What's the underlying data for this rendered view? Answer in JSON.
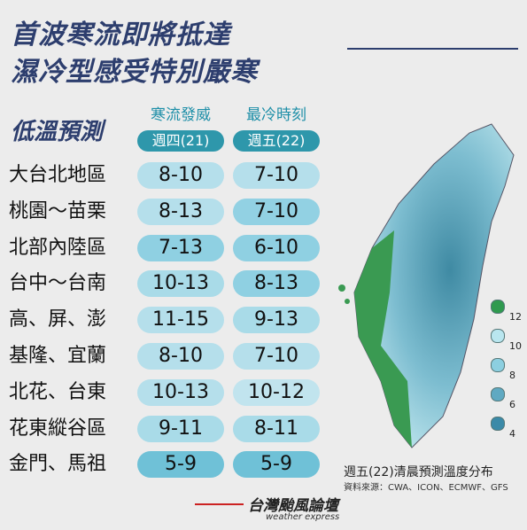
{
  "header": {
    "title_lines": [
      "首波寒流即將抵達",
      "濕冷型感受特別嚴寒"
    ]
  },
  "table": {
    "title": "低溫預測",
    "columns": [
      {
        "name": "寒流發威",
        "date": "週四(21)"
      },
      {
        "name": "最冷時刻",
        "date": "週五(22)"
      }
    ],
    "rows": [
      {
        "region": "大台北地區",
        "values": [
          "8-10",
          "7-10"
        ],
        "colors": [
          "#b5dfeb",
          "#b5dfeb"
        ]
      },
      {
        "region": "桃園～苗栗",
        "values": [
          "8-13",
          "7-10"
        ],
        "colors": [
          "#b5dfeb",
          "#92d1e3"
        ]
      },
      {
        "region": "北部內陸區",
        "values": [
          "7-13",
          "6-10"
        ],
        "colors": [
          "#8fd0e2",
          "#8fd0e2"
        ]
      },
      {
        "region": "台中～台南",
        "values": [
          "10-13",
          "8-13"
        ],
        "colors": [
          "#a9dbe8",
          "#8fd0e2"
        ]
      },
      {
        "region": "高、屏、澎",
        "values": [
          "11-15",
          "9-13"
        ],
        "colors": [
          "#b5dfeb",
          "#a9dbe8"
        ]
      },
      {
        "region": "基隆、宜蘭",
        "values": [
          "8-10",
          "7-10"
        ],
        "colors": [
          "#b5dfeb",
          "#b5dfeb"
        ]
      },
      {
        "region": "北花、台東",
        "values": [
          "10-13",
          "10-12"
        ],
        "colors": [
          "#b5dfeb",
          "#c1e4ee"
        ]
      },
      {
        "region": "花東縱谷區",
        "values": [
          "9-11",
          "8-11"
        ],
        "colors": [
          "#a9dbe8",
          "#a9dbe8"
        ]
      },
      {
        "region": "金門、馬祖",
        "values": [
          "5-9",
          "5-9"
        ],
        "colors": [
          "#6fc1d7",
          "#6fc1d7"
        ]
      }
    ]
  },
  "map": {
    "caption": "週五(22)清晨預測溫度分布",
    "source": "資料來源：CWA、ICON、ECMWF、GFS",
    "legend": [
      {
        "label": "12",
        "color": "#2f9a4f"
      },
      {
        "label": "10",
        "color": "#b9e6ef"
      },
      {
        "label": "8",
        "color": "#8ccfe0"
      },
      {
        "label": "6",
        "color": "#5fa9c2"
      },
      {
        "label": "4",
        "color": "#3b8aa8"
      }
    ]
  },
  "footer": {
    "brand": "台灣颱風論壇",
    "tagline": "weather express"
  }
}
